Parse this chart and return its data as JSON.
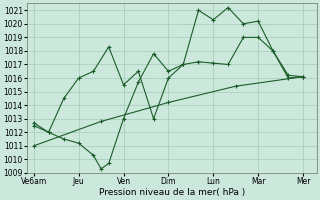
{
  "background_color": "#cce8dc",
  "grid_color": "#aacfbe",
  "line_color": "#1a5c28",
  "xlabel": "Pression niveau de la mer( hPa )",
  "ylim": [
    1009,
    1021.5
  ],
  "yticks": [
    1009,
    1010,
    1011,
    1012,
    1013,
    1014,
    1015,
    1016,
    1017,
    1018,
    1019,
    1020,
    1021
  ],
  "xtick_labels": [
    "Ve6am",
    "Jeu",
    "Ven",
    "Dim",
    "Lun",
    "Mar",
    "Mer"
  ],
  "xtick_positions": [
    0,
    1,
    2,
    3,
    4,
    5,
    6
  ],
  "series1_x": [
    0.0,
    0.33,
    0.67,
    1.0,
    1.33,
    1.67,
    2.0,
    2.33,
    2.67,
    3.0,
    3.33,
    3.67,
    4.0,
    4.33,
    4.67,
    5.0,
    5.33,
    5.67,
    6.0
  ],
  "series1_y": [
    1012.7,
    1012.0,
    1014.5,
    1016.0,
    1016.5,
    1018.3,
    1015.5,
    1016.5,
    1013.0,
    1016.0,
    1017.0,
    1017.2,
    1017.1,
    1017.0,
    1019.0,
    1019.0,
    1018.0,
    1016.0,
    1016.1
  ],
  "series2_x": [
    0.0,
    0.33,
    0.67,
    1.0,
    1.33,
    1.5,
    1.67,
    2.0,
    2.33,
    2.67,
    3.0,
    3.33,
    3.67,
    4.0,
    4.33,
    4.67,
    5.0,
    5.33,
    5.67,
    6.0
  ],
  "series2_y": [
    1012.5,
    1012.0,
    1011.5,
    1011.2,
    1010.3,
    1009.3,
    1009.7,
    1013.0,
    1015.7,
    1017.8,
    1016.5,
    1017.0,
    1021.0,
    1020.3,
    1021.2,
    1020.0,
    1020.2,
    1018.0,
    1016.2,
    1016.1
  ],
  "series3_x": [
    0.0,
    1.5,
    3.0,
    4.5,
    6.0
  ],
  "series3_y": [
    1011.0,
    1012.8,
    1014.2,
    1015.4,
    1016.1
  ],
  "figsize": [
    3.2,
    2.0
  ],
  "dpi": 100
}
